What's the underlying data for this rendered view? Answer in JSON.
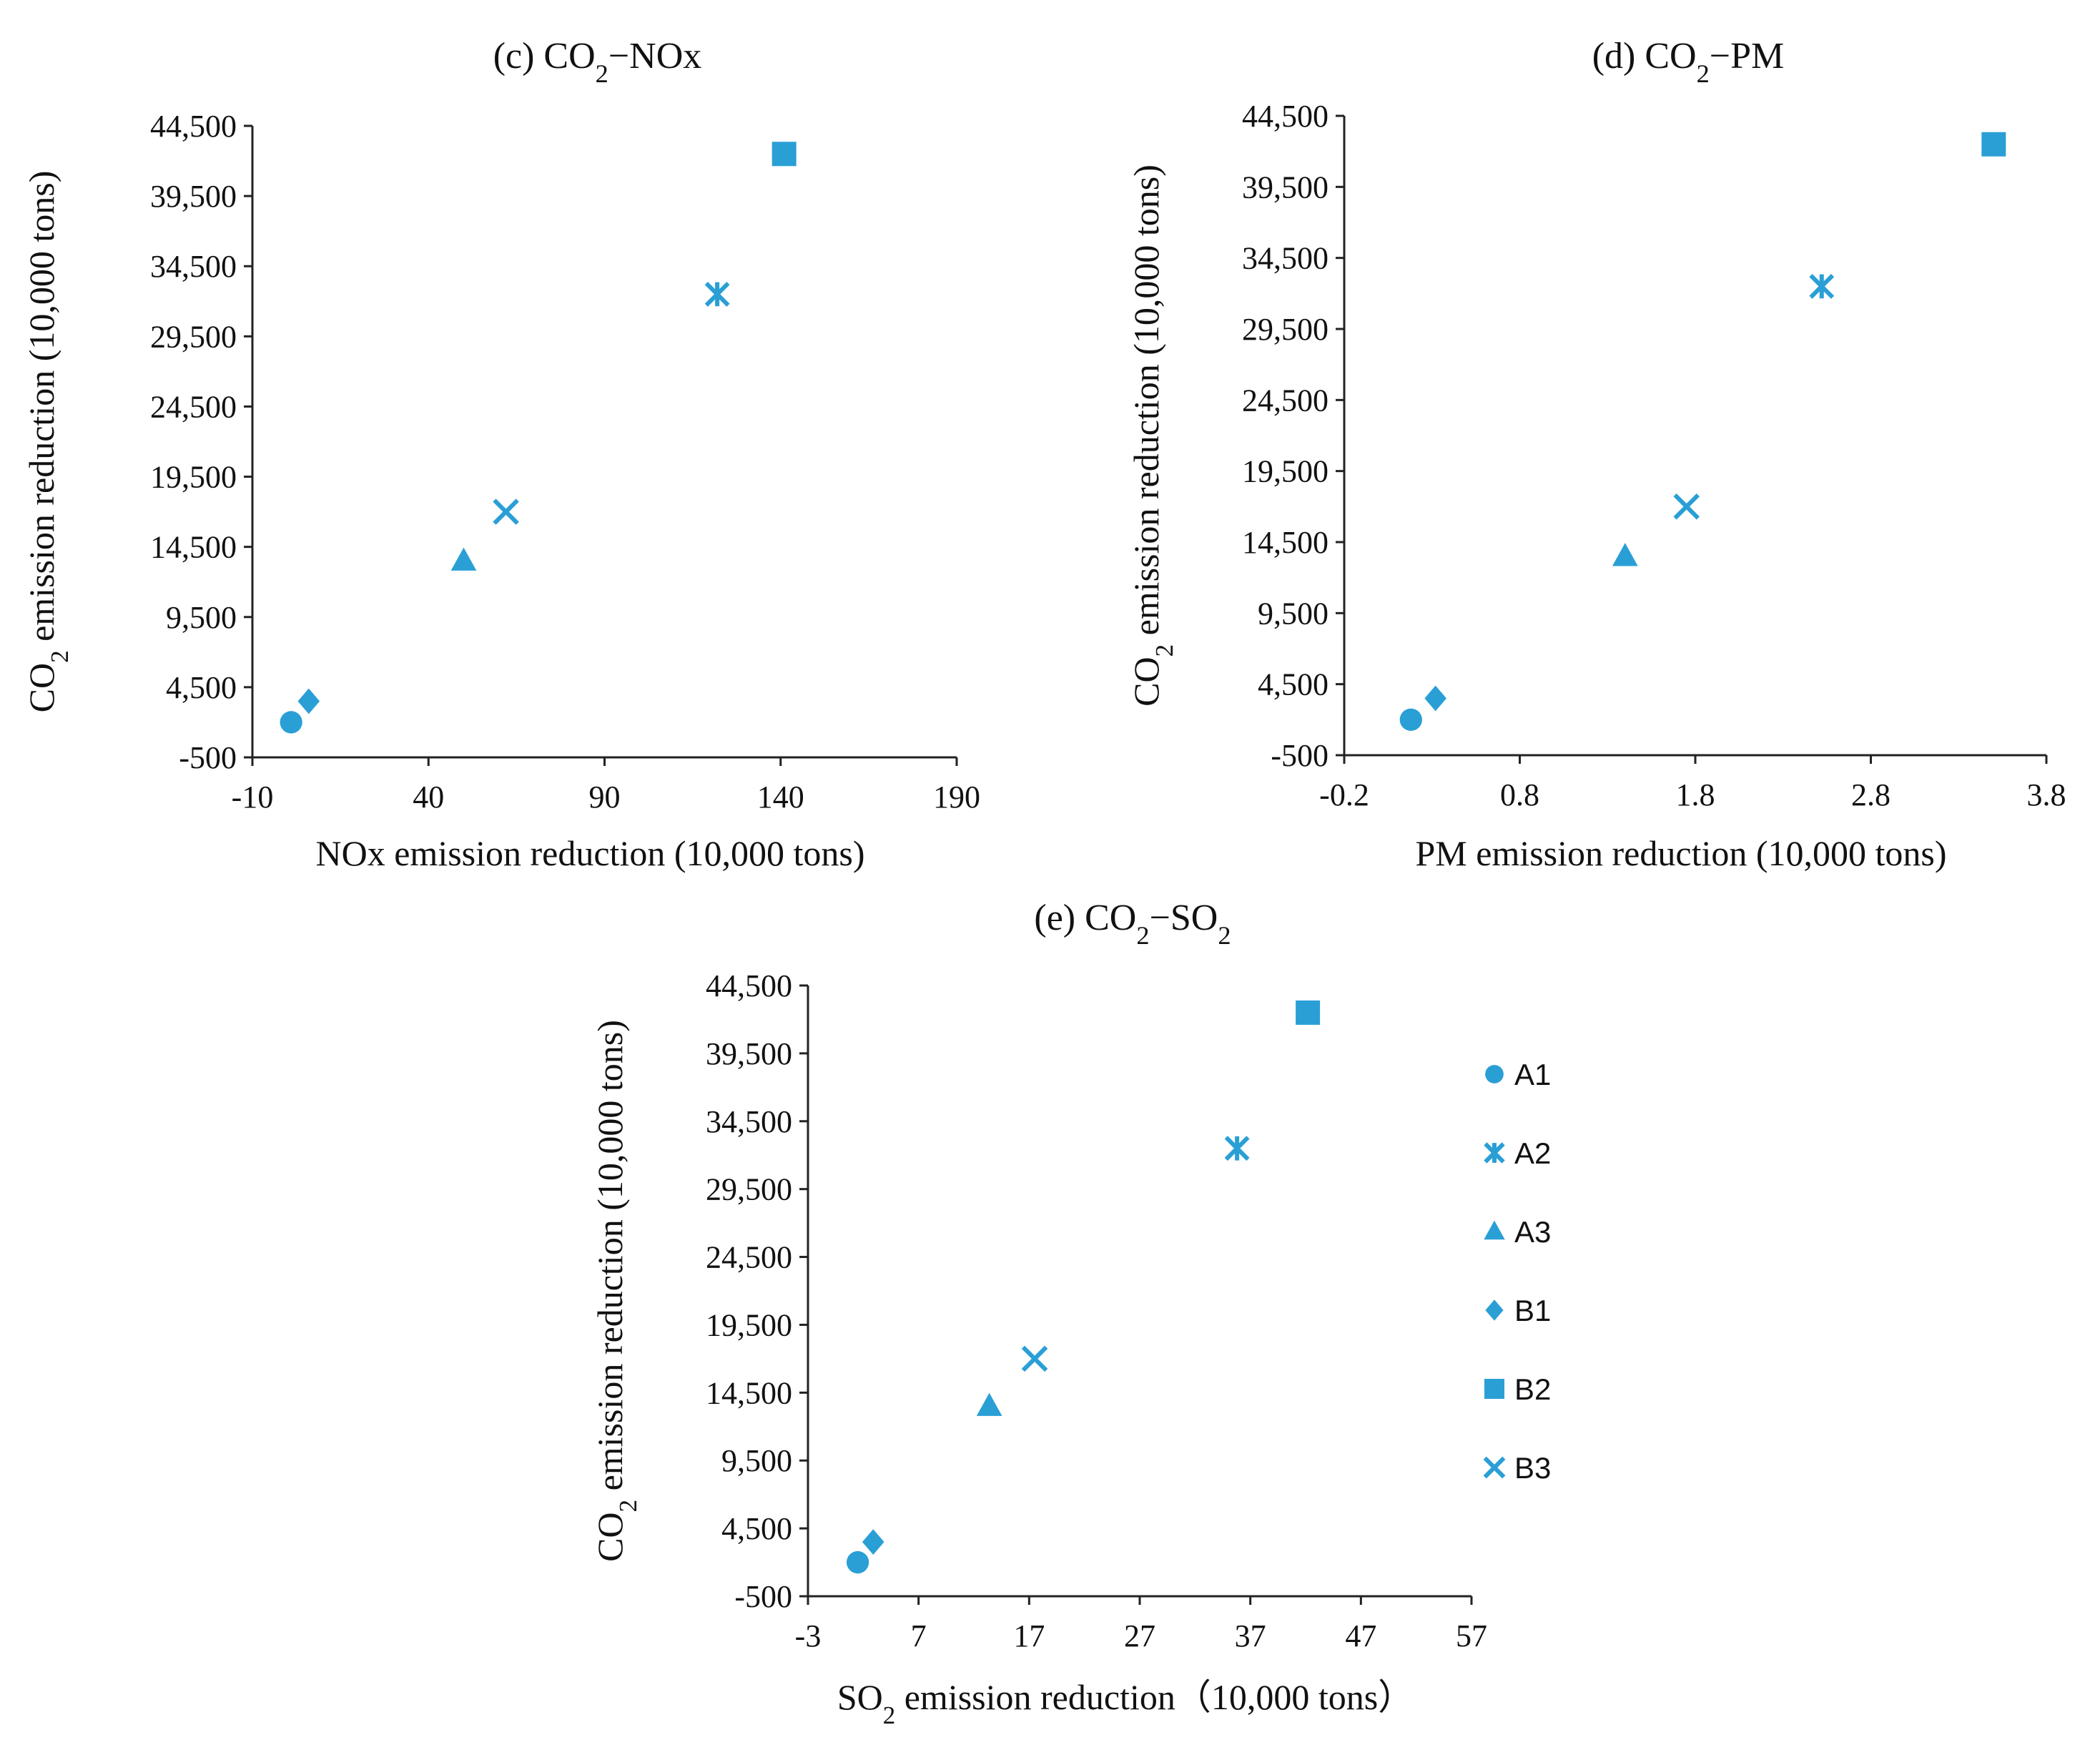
{
  "colors": {
    "marker": "#2a9fd6",
    "axis": "#222222"
  },
  "chart_data": [
    {
      "type": "scatter",
      "title": "(c) CO₂−NOx",
      "xlabel": "NOx emission reduction (10,000  tons)",
      "ylabel": "CO₂ emission reduction (10,000 tons)",
      "xlim": [
        -10,
        190
      ],
      "xticks": [
        -10,
        40,
        90,
        140,
        190
      ],
      "xtick_labels": [
        "-10",
        "40",
        "90",
        "140",
        "190"
      ],
      "ylim": [
        -500,
        44500
      ],
      "yticks": [
        -500,
        4500,
        9500,
        14500,
        19500,
        24500,
        29500,
        34500,
        39500,
        44500
      ],
      "ytick_labels": [
        "-500",
        "4,500",
        "9,500",
        "14,500",
        "19,500",
        "24,500",
        "29,500",
        "34,500",
        "39,500",
        "44,500"
      ],
      "points": [
        {
          "series": "A1",
          "x": 1,
          "y": 2000
        },
        {
          "series": "B1",
          "x": 6,
          "y": 3500
        },
        {
          "series": "A3",
          "x": 50,
          "y": 13500
        },
        {
          "series": "B3",
          "x": 62,
          "y": 17000
        },
        {
          "series": "A2",
          "x": 122,
          "y": 32500
        },
        {
          "series": "B2",
          "x": 141,
          "y": 42500
        }
      ]
    },
    {
      "type": "scatter",
      "title": "(d) CO₂−PM",
      "xlabel": "PM emission reduction (10,000  tons)",
      "ylabel": "CO₂ emission reduction (10,000 tons)",
      "xlim": [
        -0.2,
        3.8
      ],
      "xticks": [
        -0.2,
        0.8,
        1.8,
        2.8,
        3.8
      ],
      "xtick_labels": [
        "-0.2",
        "0.8",
        "1.8",
        "2.8",
        "3.8"
      ],
      "ylim": [
        -500,
        44500
      ],
      "yticks": [
        -500,
        4500,
        9500,
        14500,
        19500,
        24500,
        29500,
        34500,
        39500,
        44500
      ],
      "ytick_labels": [
        "-500",
        "4,500",
        "9,500",
        "14,500",
        "19,500",
        "24,500",
        "29,500",
        "34,500",
        "39,500",
        "44,500"
      ],
      "points": [
        {
          "series": "A1",
          "x": 0.18,
          "y": 2000
        },
        {
          "series": "B1",
          "x": 0.32,
          "y": 3500
        },
        {
          "series": "A3",
          "x": 1.4,
          "y": 13500
        },
        {
          "series": "B3",
          "x": 1.75,
          "y": 17000
        },
        {
          "series": "A2",
          "x": 2.52,
          "y": 32500
        },
        {
          "series": "B2",
          "x": 3.5,
          "y": 42500
        }
      ]
    },
    {
      "type": "scatter",
      "title": "(e) CO₂−SO₂",
      "xlabel": "SO₂ emission reduction（10,000 tons）",
      "ylabel": "CO₂ emission reduction (10,000 tons)",
      "xlim": [
        -3,
        57
      ],
      "xticks": [
        -3,
        7,
        17,
        27,
        37,
        47,
        57
      ],
      "xtick_labels": [
        "-3",
        "7",
        "17",
        "27",
        "37",
        "47",
        "57"
      ],
      "ylim": [
        -500,
        44500
      ],
      "yticks": [
        -500,
        4500,
        9500,
        14500,
        19500,
        24500,
        29500,
        34500,
        39500,
        44500
      ],
      "ytick_labels": [
        "-500",
        "4,500",
        "9,500",
        "14,500",
        "19,500",
        "24,500",
        "29,500",
        "34,500",
        "39,500",
        "44,500"
      ],
      "points": [
        {
          "series": "A1",
          "x": 1.5,
          "y": 2000
        },
        {
          "series": "B1",
          "x": 2.9,
          "y": 3500
        },
        {
          "series": "A3",
          "x": 13.4,
          "y": 13500
        },
        {
          "series": "B3",
          "x": 17.5,
          "y": 17000
        },
        {
          "series": "A2",
          "x": 35.8,
          "y": 32500
        },
        {
          "series": "B2",
          "x": 42.2,
          "y": 42500
        }
      ]
    }
  ],
  "legend": {
    "placement": "right of panel (e)",
    "items": [
      {
        "label": "A1",
        "marker": "circle"
      },
      {
        "label": "A2",
        "marker": "asterisk"
      },
      {
        "label": "A3",
        "marker": "triangle"
      },
      {
        "label": "B1",
        "marker": "diamond"
      },
      {
        "label": "B2",
        "marker": "square"
      },
      {
        "label": "B3",
        "marker": "cross"
      }
    ]
  }
}
